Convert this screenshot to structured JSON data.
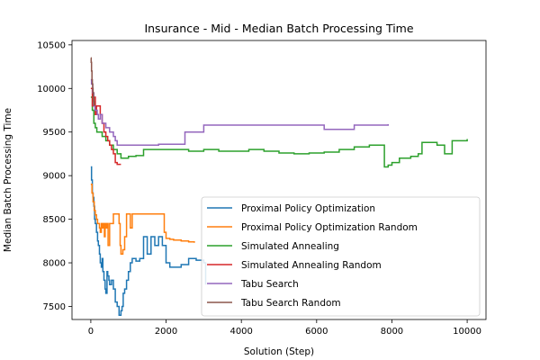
{
  "chart_data": {
    "type": "line",
    "title": "Insurance - Mid - Median Batch Processing Time",
    "xlabel": "Solution (Step)",
    "ylabel": "Median Batch Processing Time",
    "xlim": [
      -500,
      10500
    ],
    "ylim": [
      7350,
      10550
    ],
    "xticks": [
      0,
      2000,
      4000,
      6000,
      8000,
      10000
    ],
    "yticks": [
      7500,
      8000,
      8500,
      9000,
      9500,
      10000,
      10500
    ],
    "legend_position": "lower-right",
    "series": [
      {
        "name": "Proximal Policy Optimization",
        "color": "#1f77b4",
        "points": [
          [
            0,
            9100
          ],
          [
            20,
            8950
          ],
          [
            40,
            8800
          ],
          [
            60,
            8750
          ],
          [
            80,
            8650
          ],
          [
            100,
            8500
          ],
          [
            120,
            8450
          ],
          [
            150,
            8350
          ],
          [
            180,
            8250
          ],
          [
            200,
            8200
          ],
          [
            230,
            8100
          ],
          [
            250,
            8000
          ],
          [
            280,
            7950
          ],
          [
            300,
            8050
          ],
          [
            320,
            7900
          ],
          [
            350,
            7800
          ],
          [
            380,
            7700
          ],
          [
            400,
            7650
          ],
          [
            430,
            7900
          ],
          [
            450,
            7850
          ],
          [
            480,
            7800
          ],
          [
            500,
            7750
          ],
          [
            550,
            7800
          ],
          [
            600,
            7700
          ],
          [
            650,
            7550
          ],
          [
            700,
            7500
          ],
          [
            750,
            7400
          ],
          [
            800,
            7450
          ],
          [
            830,
            7500
          ],
          [
            860,
            7650
          ],
          [
            900,
            7700
          ],
          [
            950,
            7800
          ],
          [
            1000,
            7900
          ],
          [
            1050,
            8000
          ],
          [
            1100,
            8050
          ],
          [
            1200,
            8020
          ],
          [
            1300,
            8050
          ],
          [
            1400,
            8300
          ],
          [
            1500,
            8100
          ],
          [
            1600,
            8300
          ],
          [
            1700,
            8200
          ],
          [
            1800,
            8300
          ],
          [
            1900,
            8200
          ],
          [
            2000,
            8000
          ],
          [
            2100,
            7950
          ],
          [
            2200,
            7950
          ],
          [
            2300,
            7950
          ],
          [
            2400,
            7980
          ],
          [
            2600,
            8050
          ],
          [
            2800,
            8030
          ],
          [
            3000,
            8000
          ],
          [
            3050,
            7750
          ]
        ]
      },
      {
        "name": "Proximal Policy Optimization Random",
        "color": "#ff7f0e",
        "points": [
          [
            0,
            8900
          ],
          [
            30,
            8800
          ],
          [
            60,
            8700
          ],
          [
            90,
            8600
          ],
          [
            120,
            8550
          ],
          [
            150,
            8500
          ],
          [
            180,
            8450
          ],
          [
            200,
            8450
          ],
          [
            230,
            8400
          ],
          [
            250,
            8350
          ],
          [
            280,
            8450
          ],
          [
            300,
            8400
          ],
          [
            330,
            8450
          ],
          [
            360,
            8300
          ],
          [
            380,
            8450
          ],
          [
            400,
            8400
          ],
          [
            430,
            8450
          ],
          [
            460,
            8200
          ],
          [
            480,
            8200
          ],
          [
            500,
            8450
          ],
          [
            550,
            8450
          ],
          [
            600,
            8560
          ],
          [
            650,
            8560
          ],
          [
            700,
            8560
          ],
          [
            750,
            8450
          ],
          [
            780,
            8200
          ],
          [
            800,
            8100
          ],
          [
            850,
            8150
          ],
          [
            900,
            8300
          ],
          [
            950,
            8560
          ],
          [
            1000,
            8560
          ],
          [
            1050,
            8400
          ],
          [
            1100,
            8560
          ],
          [
            1200,
            8560
          ],
          [
            1300,
            8560
          ],
          [
            1400,
            8560
          ],
          [
            1500,
            8560
          ],
          [
            1600,
            8560
          ],
          [
            1700,
            8560
          ],
          [
            1800,
            8560
          ],
          [
            1900,
            8560
          ],
          [
            1950,
            8350
          ],
          [
            2000,
            8280
          ],
          [
            2100,
            8270
          ],
          [
            2200,
            8260
          ],
          [
            2400,
            8250
          ],
          [
            2600,
            8240
          ],
          [
            2750,
            8230
          ]
        ]
      },
      {
        "name": "Simulated Annealing",
        "color": "#2ca02c",
        "points": [
          [
            0,
            9900
          ],
          [
            40,
            9750
          ],
          [
            80,
            9600
          ],
          [
            120,
            9550
          ],
          [
            160,
            9500
          ],
          [
            200,
            9500
          ],
          [
            300,
            9450
          ],
          [
            400,
            9400
          ],
          [
            500,
            9350
          ],
          [
            600,
            9300
          ],
          [
            700,
            9250
          ],
          [
            800,
            9200
          ],
          [
            1000,
            9220
          ],
          [
            1200,
            9230
          ],
          [
            1400,
            9300
          ],
          [
            1800,
            9300
          ],
          [
            2200,
            9300
          ],
          [
            2600,
            9280
          ],
          [
            3000,
            9300
          ],
          [
            3400,
            9280
          ],
          [
            3800,
            9280
          ],
          [
            4200,
            9300
          ],
          [
            4600,
            9280
          ],
          [
            5000,
            9260
          ],
          [
            5400,
            9250
          ],
          [
            5800,
            9260
          ],
          [
            6200,
            9270
          ],
          [
            6600,
            9300
          ],
          [
            6800,
            9300
          ],
          [
            7000,
            9330
          ],
          [
            7200,
            9330
          ],
          [
            7400,
            9350
          ],
          [
            7600,
            9350
          ],
          [
            7800,
            9100
          ],
          [
            7900,
            9120
          ],
          [
            8000,
            9150
          ],
          [
            8200,
            9200
          ],
          [
            8500,
            9220
          ],
          [
            8700,
            9250
          ],
          [
            8800,
            9380
          ],
          [
            9000,
            9380
          ],
          [
            9200,
            9350
          ],
          [
            9400,
            9250
          ],
          [
            9600,
            9400
          ],
          [
            10000,
            9420
          ]
        ]
      },
      {
        "name": "Simulated Annealing Random",
        "color": "#d62728",
        "points": [
          [
            0,
            10000
          ],
          [
            40,
            9800
          ],
          [
            80,
            9900
          ],
          [
            120,
            9700
          ],
          [
            150,
            9800
          ],
          [
            200,
            9800
          ],
          [
            250,
            9700
          ],
          [
            300,
            9600
          ],
          [
            350,
            9500
          ],
          [
            400,
            9450
          ],
          [
            450,
            9400
          ],
          [
            500,
            9350
          ],
          [
            550,
            9300
          ],
          [
            600,
            9250
          ],
          [
            650,
            9150
          ],
          [
            700,
            9130
          ],
          [
            750,
            9130
          ],
          [
            800,
            9130
          ]
        ]
      },
      {
        "name": "Tabu Search",
        "color": "#9467bd",
        "points": [
          [
            0,
            10100
          ],
          [
            20,
            10050
          ],
          [
            50,
            9950
          ],
          [
            80,
            9800
          ],
          [
            110,
            9750
          ],
          [
            140,
            9750
          ],
          [
            170,
            9700
          ],
          [
            200,
            9650
          ],
          [
            250,
            9700
          ],
          [
            300,
            9600
          ],
          [
            400,
            9550
          ],
          [
            500,
            9500
          ],
          [
            600,
            9450
          ],
          [
            650,
            9400
          ],
          [
            700,
            9350
          ],
          [
            800,
            9350
          ],
          [
            1000,
            9350
          ],
          [
            1200,
            9350
          ],
          [
            1400,
            9350
          ],
          [
            1800,
            9360
          ],
          [
            2200,
            9360
          ],
          [
            2500,
            9500
          ],
          [
            2800,
            9500
          ],
          [
            3000,
            9580
          ],
          [
            3500,
            9580
          ],
          [
            4000,
            9580
          ],
          [
            5000,
            9580
          ],
          [
            6000,
            9580
          ],
          [
            6200,
            9530
          ],
          [
            6800,
            9530
          ],
          [
            7000,
            9580
          ],
          [
            7500,
            9580
          ],
          [
            7900,
            9590
          ]
        ]
      },
      {
        "name": "Tabu Search Random",
        "color": "#8c564b",
        "points": [
          [
            0,
            10350
          ],
          [
            10,
            10300
          ],
          [
            20,
            10200
          ],
          [
            30,
            10100
          ],
          [
            40,
            10050
          ],
          [
            50,
            10000
          ],
          [
            60,
            9950
          ],
          [
            70,
            9900
          ],
          [
            80,
            9850
          ],
          [
            90,
            9800
          ]
        ]
      }
    ]
  }
}
